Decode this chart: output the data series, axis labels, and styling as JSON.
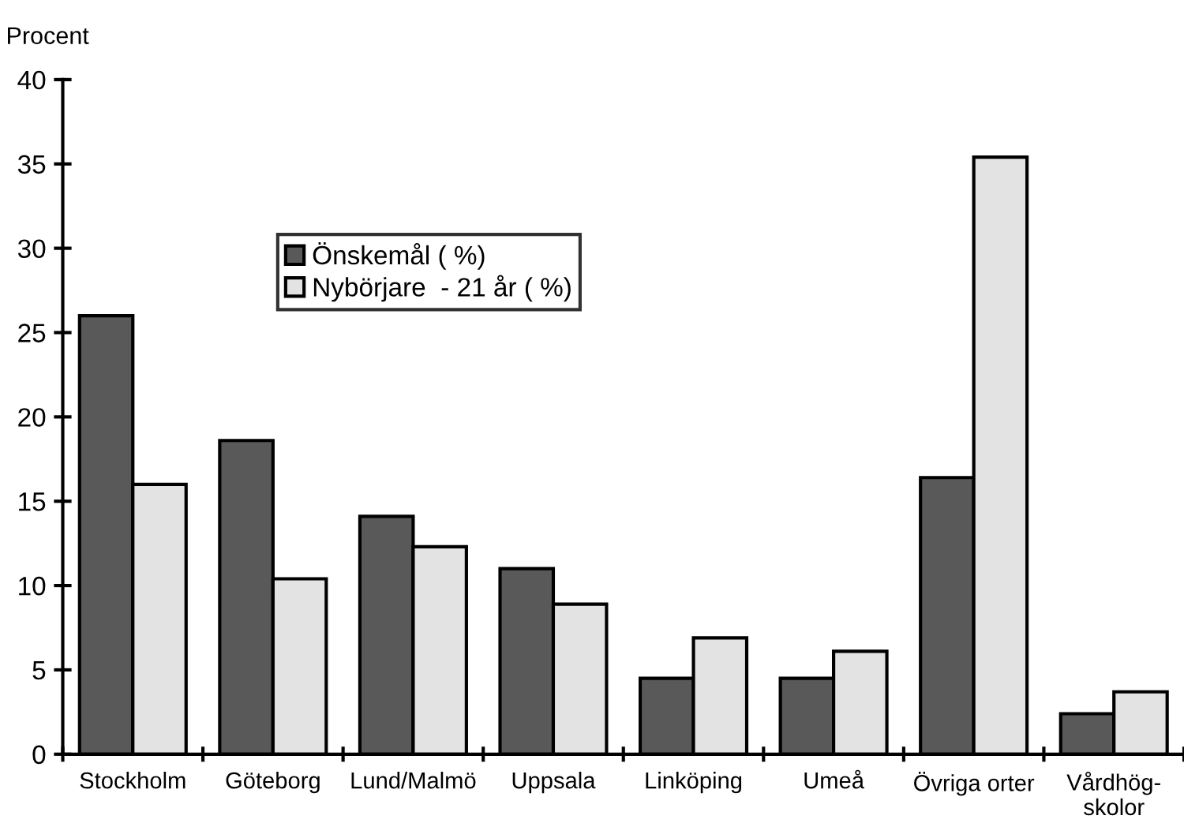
{
  "chart_data": {
    "type": "bar",
    "ylabel": "Procent",
    "categories": [
      "Stockholm",
      "Göteborg",
      "Lund/Malmö",
      "Uppsala",
      "Linköping",
      "Umeå",
      "Övriga orter",
      "Vårdhög-\nskolor"
    ],
    "series": [
      {
        "name": "Önskemål ( %)",
        "color": "#595959",
        "values": [
          26.0,
          18.6,
          14.1,
          11.0,
          4.5,
          4.5,
          16.4,
          2.4
        ]
      },
      {
        "name": "Nybörjare  - 21 år ( %)",
        "color": "#e3e3e3",
        "values": [
          16.0,
          10.4,
          12.3,
          8.9,
          6.9,
          6.1,
          35.4,
          3.7
        ]
      }
    ],
    "ylim": [
      0,
      40
    ],
    "yticks": [
      0,
      5,
      10,
      15,
      20,
      25,
      30,
      35,
      40
    ],
    "grid": false,
    "legend": "top left"
  }
}
